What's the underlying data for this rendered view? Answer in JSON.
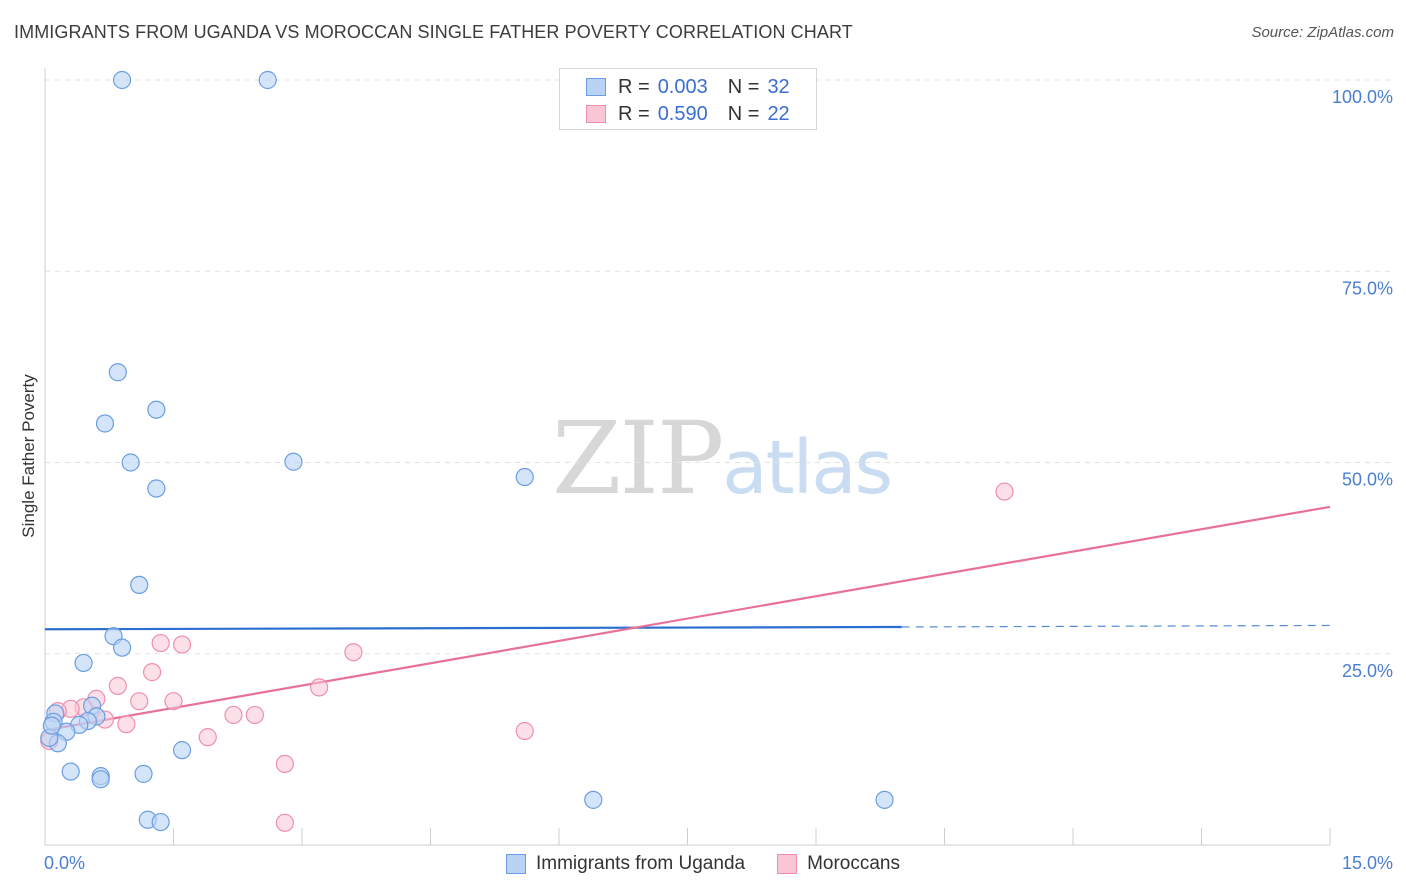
{
  "title": "IMMIGRANTS FROM UGANDA VS MOROCCAN SINGLE FATHER POVERTY CORRELATION CHART",
  "source": "Source: ZipAtlas.com",
  "watermark": {
    "zip": "ZIP",
    "atlas": "atlas"
  },
  "legend_top": {
    "rows": [
      {
        "r_label": "R =",
        "r_value": "0.003",
        "n_label": "N =",
        "n_value": "32"
      },
      {
        "r_label": "R =",
        "r_value": "0.590",
        "n_label": "N =",
        "n_value": "22"
      }
    ]
  },
  "colors": {
    "uganda_fill": "#b9d3f5",
    "uganda_stroke": "#6b9ee0",
    "uganda_line": "#2a6fd0",
    "moroccan_fill": "#f9c6d6",
    "moroccan_stroke": "#ee8fae",
    "moroccan_line": "#e8719a",
    "grid": "#e2e2e2",
    "tick": "#4a7fcf"
  },
  "chart_data": {
    "type": "scatter",
    "title": "IMMIGRANTS FROM UGANDA VS MOROCCAN SINGLE FATHER POVERTY CORRELATION CHART",
    "xlabel": "",
    "ylabel": "Single Father Poverty",
    "xlim": [
      0,
      15
    ],
    "ylim": [
      0,
      100
    ],
    "x_tick_labels": [
      "0.0%",
      "15.0%"
    ],
    "y_ticks": [
      25,
      50,
      75,
      100
    ],
    "y_tick_labels": [
      "25.0%",
      "50.0%",
      "75.0%",
      "100.0%"
    ],
    "series": [
      {
        "name": "Immigrants from Uganda",
        "R": 0.003,
        "N": 32,
        "points": [
          [
            0.9,
            100.0
          ],
          [
            2.6,
            100.0
          ],
          [
            0.85,
            61.8
          ],
          [
            1.3,
            56.9
          ],
          [
            0.7,
            55.1
          ],
          [
            1.0,
            50.0
          ],
          [
            2.9,
            50.1
          ],
          [
            1.3,
            46.6
          ],
          [
            5.6,
            48.1
          ],
          [
            1.1,
            34.0
          ],
          [
            0.8,
            27.3
          ],
          [
            0.9,
            25.8
          ],
          [
            0.45,
            23.8
          ],
          [
            0.55,
            18.2
          ],
          [
            0.6,
            16.8
          ],
          [
            0.5,
            16.2
          ],
          [
            0.4,
            15.7
          ],
          [
            0.25,
            14.8
          ],
          [
            0.12,
            17.2
          ],
          [
            0.1,
            16.1
          ],
          [
            0.15,
            13.3
          ],
          [
            0.05,
            14.0
          ],
          [
            1.6,
            12.4
          ],
          [
            0.3,
            9.6
          ],
          [
            0.65,
            9.0
          ],
          [
            0.65,
            8.6
          ],
          [
            1.15,
            9.3
          ],
          [
            6.4,
            5.9
          ],
          [
            9.8,
            5.9
          ],
          [
            1.2,
            3.3
          ],
          [
            1.35,
            3.0
          ],
          [
            0.08,
            15.6
          ]
        ],
        "trend": {
          "x0": 0,
          "y0": 28.2,
          "x1": 10.0,
          "y1": 28.5,
          "dash_x1": 15,
          "dash_y1": 28.7
        }
      },
      {
        "name": "Moroccans",
        "R": 0.59,
        "N": 22,
        "points": [
          [
            11.2,
            46.2
          ],
          [
            1.35,
            26.4
          ],
          [
            1.6,
            26.2
          ],
          [
            3.6,
            25.2
          ],
          [
            3.2,
            20.6
          ],
          [
            1.25,
            22.6
          ],
          [
            0.85,
            20.8
          ],
          [
            0.6,
            19.1
          ],
          [
            1.1,
            18.8
          ],
          [
            1.5,
            18.8
          ],
          [
            0.45,
            18.0
          ],
          [
            0.3,
            17.8
          ],
          [
            0.15,
            17.5
          ],
          [
            0.7,
            16.4
          ],
          [
            2.2,
            17.0
          ],
          [
            2.45,
            17.0
          ],
          [
            0.95,
            15.8
          ],
          [
            5.6,
            14.9
          ],
          [
            1.9,
            14.1
          ],
          [
            2.8,
            10.6
          ],
          [
            0.05,
            13.6
          ],
          [
            2.8,
            2.9
          ]
        ],
        "trend": {
          "x0": 0,
          "y0": 15.0,
          "x1": 15,
          "y1": 44.2
        }
      }
    ]
  },
  "legend_bottom": {
    "items": [
      {
        "label": "Immigrants from Uganda"
      },
      {
        "label": "Moroccans"
      }
    ]
  }
}
